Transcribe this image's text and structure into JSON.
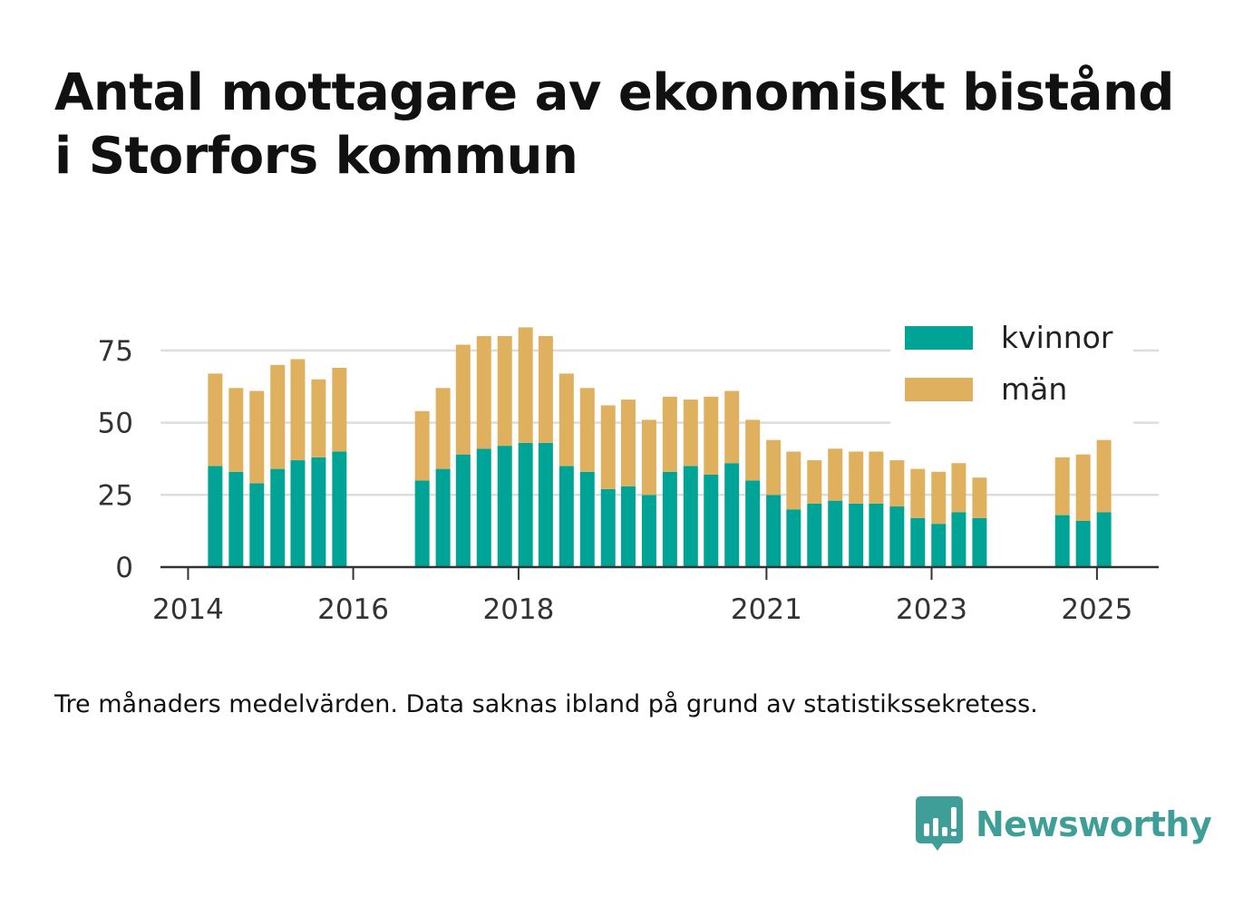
{
  "title_lines": [
    "Antal mottagare av ekonomiskt bistånd",
    "i Storfors kommun"
  ],
  "note": "Tre månaders medelvärden. Data saknas ibland på grund av statistikssekretess.",
  "brand": {
    "name": "Newsworthy",
    "icon": "bar-chart-speech-icon",
    "color": "#3f9e97"
  },
  "chart_data": {
    "type": "bar",
    "stacked": true,
    "x_axis": {
      "type": "date",
      "range": [
        "2013-09-01",
        "2025-10-01"
      ],
      "tick_labels": [
        "2014",
        "2016",
        "2018",
        "2021",
        "2023",
        "2025"
      ]
    },
    "ylim": [
      0,
      85
    ],
    "yticks": [
      0,
      25,
      50,
      75
    ],
    "grid": true,
    "legend_position": "top-right",
    "colors": {
      "kvinnor": "#00a497",
      "män": "#dfb15e"
    },
    "series_names": [
      "kvinnor",
      "män"
    ],
    "bars": [
      {
        "x": "2014-05",
        "kvinnor": 35,
        "män": 32
      },
      {
        "x": "2014-08",
        "kvinnor": 33,
        "män": 29
      },
      {
        "x": "2014-11",
        "kvinnor": 29,
        "män": 32
      },
      {
        "x": "2015-02",
        "kvinnor": 34,
        "män": 36
      },
      {
        "x": "2015-05",
        "kvinnor": 37,
        "män": 35
      },
      {
        "x": "2015-08",
        "kvinnor": 38,
        "män": 27
      },
      {
        "x": "2015-11",
        "kvinnor": 40,
        "män": 29
      },
      {
        "x": "2016-11",
        "kvinnor": 30,
        "män": 24
      },
      {
        "x": "2017-02",
        "kvinnor": 34,
        "män": 28
      },
      {
        "x": "2017-05",
        "kvinnor": 39,
        "män": 38
      },
      {
        "x": "2017-08",
        "kvinnor": 41,
        "män": 39
      },
      {
        "x": "2017-11",
        "kvinnor": 42,
        "män": 38
      },
      {
        "x": "2018-02",
        "kvinnor": 43,
        "män": 40
      },
      {
        "x": "2018-05",
        "kvinnor": 43,
        "män": 37
      },
      {
        "x": "2018-08",
        "kvinnor": 35,
        "män": 32
      },
      {
        "x": "2018-11",
        "kvinnor": 33,
        "män": 29
      },
      {
        "x": "2019-02",
        "kvinnor": 27,
        "män": 29
      },
      {
        "x": "2019-05",
        "kvinnor": 28,
        "män": 30
      },
      {
        "x": "2019-08",
        "kvinnor": 25,
        "män": 26
      },
      {
        "x": "2019-11",
        "kvinnor": 33,
        "män": 26
      },
      {
        "x": "2020-02",
        "kvinnor": 35,
        "män": 23
      },
      {
        "x": "2020-05",
        "kvinnor": 32,
        "män": 27
      },
      {
        "x": "2020-08",
        "kvinnor": 36,
        "män": 25
      },
      {
        "x": "2020-11",
        "kvinnor": 30,
        "män": 21
      },
      {
        "x": "2021-02",
        "kvinnor": 25,
        "män": 19
      },
      {
        "x": "2021-05",
        "kvinnor": 20,
        "män": 20
      },
      {
        "x": "2021-08",
        "kvinnor": 22,
        "män": 15
      },
      {
        "x": "2021-11",
        "kvinnor": 23,
        "män": 18
      },
      {
        "x": "2022-02",
        "kvinnor": 22,
        "män": 18
      },
      {
        "x": "2022-05",
        "kvinnor": 22,
        "män": 18
      },
      {
        "x": "2022-08",
        "kvinnor": 21,
        "män": 16
      },
      {
        "x": "2022-11",
        "kvinnor": 17,
        "män": 17
      },
      {
        "x": "2023-02",
        "kvinnor": 15,
        "män": 18
      },
      {
        "x": "2023-05",
        "kvinnor": 19,
        "män": 17
      },
      {
        "x": "2023-08",
        "kvinnor": 17,
        "män": 14
      },
      {
        "x": "2024-08",
        "kvinnor": 18,
        "män": 20
      },
      {
        "x": "2024-11",
        "kvinnor": 16,
        "män": 23
      },
      {
        "x": "2025-02",
        "kvinnor": 19,
        "män": 25
      }
    ]
  }
}
